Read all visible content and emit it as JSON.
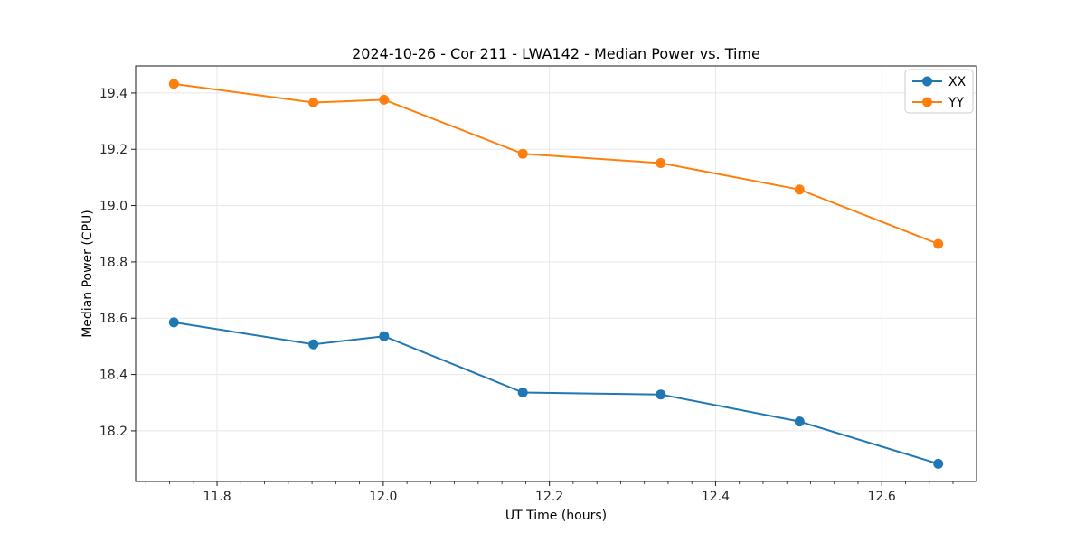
{
  "chart_data": {
    "type": "line",
    "title": "2024-10-26 - Cor 211 - LWA142 - Median Power vs. Time",
    "xlabel": "UT Time (hours)",
    "ylabel": "Median Power (CPU)",
    "x": [
      11.748,
      11.916,
      12.001,
      12.168,
      12.334,
      12.501,
      12.668
    ],
    "series": [
      {
        "name": "XX",
        "color": "#1f77b4",
        "values": [
          18.585,
          18.507,
          18.536,
          18.336,
          18.329,
          18.233,
          18.083
        ]
      },
      {
        "name": "YY",
        "color": "#ff7f0e",
        "values": [
          19.432,
          19.366,
          19.376,
          19.184,
          19.151,
          19.057,
          18.864
        ]
      }
    ],
    "xlim": [
      11.702,
      12.714
    ],
    "ylim": [
      18.02,
      19.496
    ],
    "xticks": [
      11.8,
      12.0,
      12.2,
      12.4,
      12.6
    ],
    "yticks": [
      18.2,
      18.4,
      18.6,
      18.8,
      19.0,
      19.2,
      19.4
    ],
    "x_minor_divisions": 7,
    "grid": true,
    "grid_color": "#e8e8e8",
    "spine_color": "#1a1a1a",
    "tick_label_color": "#262626",
    "legend_position": "upper right",
    "legend_border_color": "#cccccc",
    "marker": "circle",
    "line_width": 2,
    "marker_radius": 5.5
  }
}
